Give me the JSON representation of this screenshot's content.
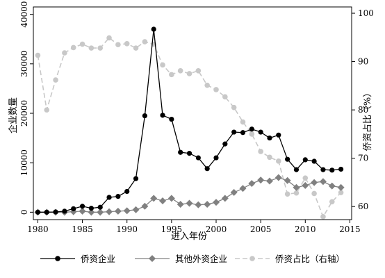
{
  "chart_data": {
    "type": "line",
    "xlabel": "进入年份",
    "ylabel_left": "企业数量",
    "ylabel_right": "侨资占比（%）",
    "xlim": [
      1979.5,
      2015.2
    ],
    "ylim_left": [
      -1500,
      41500
    ],
    "ylim_right": [
      57.3,
      101.3
    ],
    "x_ticks": [
      1980,
      1985,
      1990,
      1995,
      2000,
      2005,
      2010,
      2015
    ],
    "y_left_ticks": [
      0,
      10000,
      20000,
      30000,
      40000
    ],
    "y_right_ticks": [
      60,
      70,
      80,
      90,
      100
    ],
    "grid": false,
    "legend_position": "bottom",
    "series": [
      {
        "name": "侨资企业",
        "axis": "left",
        "color": "#000000",
        "style": "solid",
        "marker": "circle",
        "x": [
          1980,
          1981,
          1982,
          1983,
          1984,
          1985,
          1986,
          1987,
          1988,
          1989,
          1990,
          1991,
          1992,
          1993,
          1994,
          1995,
          1996,
          1997,
          1998,
          1999,
          2000,
          2001,
          2002,
          2003,
          2004,
          2005,
          2006,
          2007,
          2008,
          2009,
          2010,
          2011,
          2012,
          2013,
          2014
        ],
        "values": [
          0,
          0,
          50,
          200,
          700,
          1200,
          800,
          1000,
          3000,
          3200,
          4200,
          6800,
          19500,
          37000,
          19600,
          18800,
          12100,
          11900,
          11000,
          8800,
          11000,
          13800,
          16200,
          16100,
          16800,
          16200,
          15000,
          15600,
          10700,
          8600,
          10600,
          10300,
          8600,
          8500,
          8700
        ]
      },
      {
        "name": "其他外资企业",
        "axis": "left",
        "color": "#808080",
        "style": "solid",
        "marker": "diamond",
        "x": [
          1980,
          1981,
          1982,
          1983,
          1984,
          1985,
          1986,
          1987,
          1988,
          1989,
          1990,
          1991,
          1992,
          1993,
          1994,
          1995,
          1996,
          1997,
          1998,
          1999,
          2000,
          2001,
          2002,
          2003,
          2004,
          2005,
          2006,
          2007,
          2008,
          2009,
          2010,
          2011,
          2012,
          2013,
          2014
        ],
        "values": [
          0,
          0,
          0,
          0,
          100,
          200,
          0,
          0,
          100,
          200,
          300,
          500,
          1200,
          2800,
          2300,
          2800,
          1600,
          1800,
          1500,
          1600,
          2000,
          2800,
          4000,
          4800,
          5800,
          6500,
          6300,
          7000,
          6400,
          5000,
          5400,
          6000,
          6200,
          5300,
          5000
        ]
      },
      {
        "name": "侨资占比（右轴）",
        "axis": "right",
        "color": "#c8c8c8",
        "style": "dashed",
        "marker": "circle",
        "x": [
          1980,
          1981,
          1982,
          1983,
          1984,
          1985,
          1986,
          1987,
          1988,
          1989,
          1990,
          1991,
          1992,
          1993,
          1994,
          1995,
          1996,
          1997,
          1998,
          1999,
          2000,
          2001,
          2002,
          2003,
          2004,
          2005,
          2006,
          2007,
          2008,
          2009,
          2010,
          2011,
          2012,
          2013,
          2014
        ],
        "values": [
          91.3,
          80,
          86.2,
          91.8,
          92.9,
          93.6,
          92.8,
          92.8,
          94.9,
          93.5,
          93.7,
          92.8,
          94.1,
          93.6,
          89.3,
          87.3,
          88.1,
          87.5,
          88.1,
          85.1,
          84.2,
          82.7,
          80.5,
          77.5,
          75.0,
          71.4,
          70.2,
          69.4,
          62.6,
          62.8,
          65.9,
          62.7,
          57.9,
          61.0,
          62.9
        ]
      }
    ]
  }
}
